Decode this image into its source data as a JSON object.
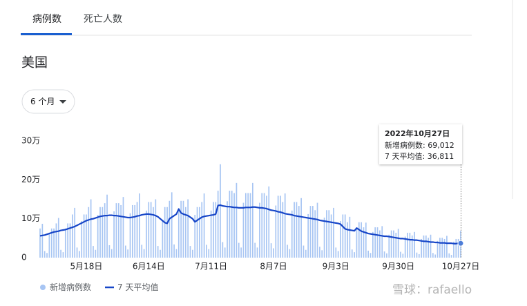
{
  "tabs": [
    "病例数",
    "死亡人数"
  ],
  "region": "美国",
  "range_selector": "6 个月",
  "tooltip": {
    "title": "2022年10月27日",
    "lines": [
      "新增病例数: 69,012",
      "7 天平均值: 36,811"
    ]
  },
  "watermark": "雪球：rafaello",
  "chart_data": {
    "type": "bar-line",
    "categories": [
      null,
      null,
      null,
      null,
      null,
      null,
      null,
      null,
      null,
      null,
      null,
      null,
      null,
      null,
      null,
      null,
      null,
      null,
      null,
      null,
      "5月18日",
      null,
      null,
      null,
      null,
      null,
      null,
      null,
      null,
      null,
      null,
      null,
      null,
      null,
      null,
      null,
      null,
      null,
      null,
      null,
      null,
      null,
      null,
      null,
      null,
      null,
      null,
      "6月14日",
      null,
      null,
      null,
      null,
      null,
      null,
      null,
      null,
      null,
      null,
      null,
      null,
      null,
      null,
      null,
      null,
      null,
      null,
      null,
      null,
      null,
      null,
      null,
      null,
      null,
      null,
      "7月11日",
      null,
      null,
      null,
      null,
      null,
      null,
      null,
      null,
      null,
      null,
      null,
      null,
      null,
      null,
      null,
      null,
      null,
      null,
      null,
      null,
      null,
      null,
      null,
      null,
      null,
      null,
      "8月7日",
      null,
      null,
      null,
      null,
      null,
      null,
      null,
      null,
      null,
      null,
      null,
      null,
      null,
      null,
      null,
      null,
      null,
      null,
      null,
      null,
      null,
      null,
      null,
      null,
      null,
      null,
      "9月3日",
      null,
      null,
      null,
      null,
      null,
      null,
      null,
      null,
      null,
      null,
      null,
      null,
      null,
      null,
      null,
      null,
      null,
      null,
      null,
      null,
      null,
      null,
      null,
      null,
      null,
      null,
      "9月30日",
      null,
      null,
      null,
      null,
      null,
      null,
      null,
      null,
      null,
      null,
      null,
      null,
      null,
      null,
      null,
      null,
      null,
      null,
      null,
      null,
      null,
      null,
      null,
      null,
      null,
      null,
      "10月27日"
    ],
    "series": [
      {
        "name": "新增病例数",
        "color": "#a7c5f3",
        "values": [
          75000,
          87000,
          17000,
          12000,
          64000,
          75000,
          75000,
          88000,
          102000,
          20000,
          14000,
          75000,
          88000,
          88000,
          111000,
          128000,
          26000,
          17000,
          94000,
          111000,
          111000,
          130000,
          150000,
          30000,
          20000,
          110000,
          130000,
          130000,
          140000,
          162000,
          32000,
          22000,
          119000,
          140000,
          140000,
          135000,
          156000,
          31000,
          21000,
          114000,
          135000,
          135000,
          143000,
          165000,
          33000,
          22000,
          121000,
          143000,
          143000,
          130000,
          150000,
          30000,
          20000,
          95000,
          130000,
          130000,
          146000,
          168000,
          34000,
          22000,
          123000,
          146000,
          146000,
          130000,
          150000,
          30000,
          20000,
          110000,
          130000,
          130000,
          143000,
          165000,
          33000,
          22000,
          121000,
          143000,
          143000,
          172000,
          240000,
          40000,
          26000,
          145000,
          172000,
          172000,
          166000,
          192000,
          38000,
          26000,
          141000,
          166000,
          166000,
          166000,
          192000,
          38000,
          26000,
          141000,
          166000,
          166000,
          159000,
          183000,
          37000,
          24000,
          134000,
          159000,
          159000,
          143000,
          165000,
          33000,
          22000,
          121000,
          143000,
          143000,
          133000,
          153000,
          31000,
          20000,
          112000,
          133000,
          133000,
          122000,
          141000,
          28000,
          19000,
          103000,
          122000,
          122000,
          111000,
          128000,
          26000,
          17000,
          94000,
          111000,
          111000,
          91000,
          105000,
          21000,
          14000,
          77000,
          91000,
          91000,
          78000,
          90000,
          18000,
          12000,
          66000,
          78000,
          78000,
          70000,
          81000,
          16000,
          11000,
          59000,
          70000,
          70000,
          64000,
          74000,
          15000,
          10000,
          54000,
          64000,
          64000,
          57000,
          66000,
          13000,
          9000,
          48000,
          57000,
          57000,
          51000,
          59000,
          12000,
          8000,
          43000,
          51000,
          51000,
          48000,
          56000,
          11000,
          7000,
          41000,
          48000,
          48000,
          69012
        ]
      },
      {
        "name": "7 天平均值",
        "color": "#1746c8",
        "values": [
          56000,
          57000,
          58000,
          60000,
          62000,
          64000,
          66000,
          67000,
          68000,
          70000,
          71000,
          72000,
          74000,
          76000,
          78000,
          80000,
          83000,
          86000,
          89000,
          92000,
          95000,
          97000,
          99000,
          100000,
          102000,
          104000,
          106000,
          107000,
          108000,
          108000,
          109000,
          109000,
          108000,
          108000,
          107000,
          106000,
          105000,
          104000,
          103000,
          103000,
          104000,
          105000,
          107000,
          108000,
          110000,
          111000,
          112000,
          112000,
          111000,
          110000,
          108000,
          105000,
          100000,
          95000,
          90000,
          88000,
          100000,
          104000,
          108000,
          112000,
          125000,
          115000,
          112000,
          110000,
          108000,
          104000,
          100000,
          92000,
          96000,
          100000,
          104000,
          106000,
          107000,
          108000,
          109000,
          110000,
          112000,
          134000,
          135000,
          133000,
          132000,
          131000,
          131000,
          130000,
          129000,
          129000,
          128000,
          128000,
          128000,
          129000,
          129000,
          129000,
          130000,
          130000,
          129000,
          128000,
          128000,
          127000,
          126000,
          124000,
          122000,
          121000,
          120000,
          118000,
          117000,
          115000,
          113000,
          112000,
          111000,
          110000,
          108000,
          107000,
          106000,
          105000,
          104000,
          103000,
          102000,
          101000,
          100000,
          99000,
          98000,
          96000,
          95000,
          94000,
          93000,
          92000,
          91000,
          90000,
          89000,
          88000,
          86000,
          80000,
          74000,
          72000,
          71000,
          70000,
          69000,
          76000,
          72000,
          68000,
          66000,
          64000,
          62000,
          61000,
          60000,
          59000,
          58000,
          57000,
          56000,
          55000,
          55000,
          54000,
          53000,
          52000,
          51000,
          50000,
          49000,
          49000,
          48000,
          47000,
          46000,
          46000,
          45000,
          45000,
          44000,
          43000,
          42000,
          42000,
          41000,
          40000,
          40000,
          39000,
          39000,
          38000,
          38000,
          38000,
          37000,
          37000,
          37000,
          36000,
          36000,
          37000,
          36811
        ]
      }
    ],
    "ylim": [
      0,
      300000
    ],
    "yticks": [
      0,
      {
        "value": 100000,
        "label": "10万"
      },
      {
        "value": 200000,
        "label": "20万"
      },
      {
        "value": 300000,
        "label": "30万"
      }
    ],
    "grid": false,
    "legend": "bottom-left"
  }
}
